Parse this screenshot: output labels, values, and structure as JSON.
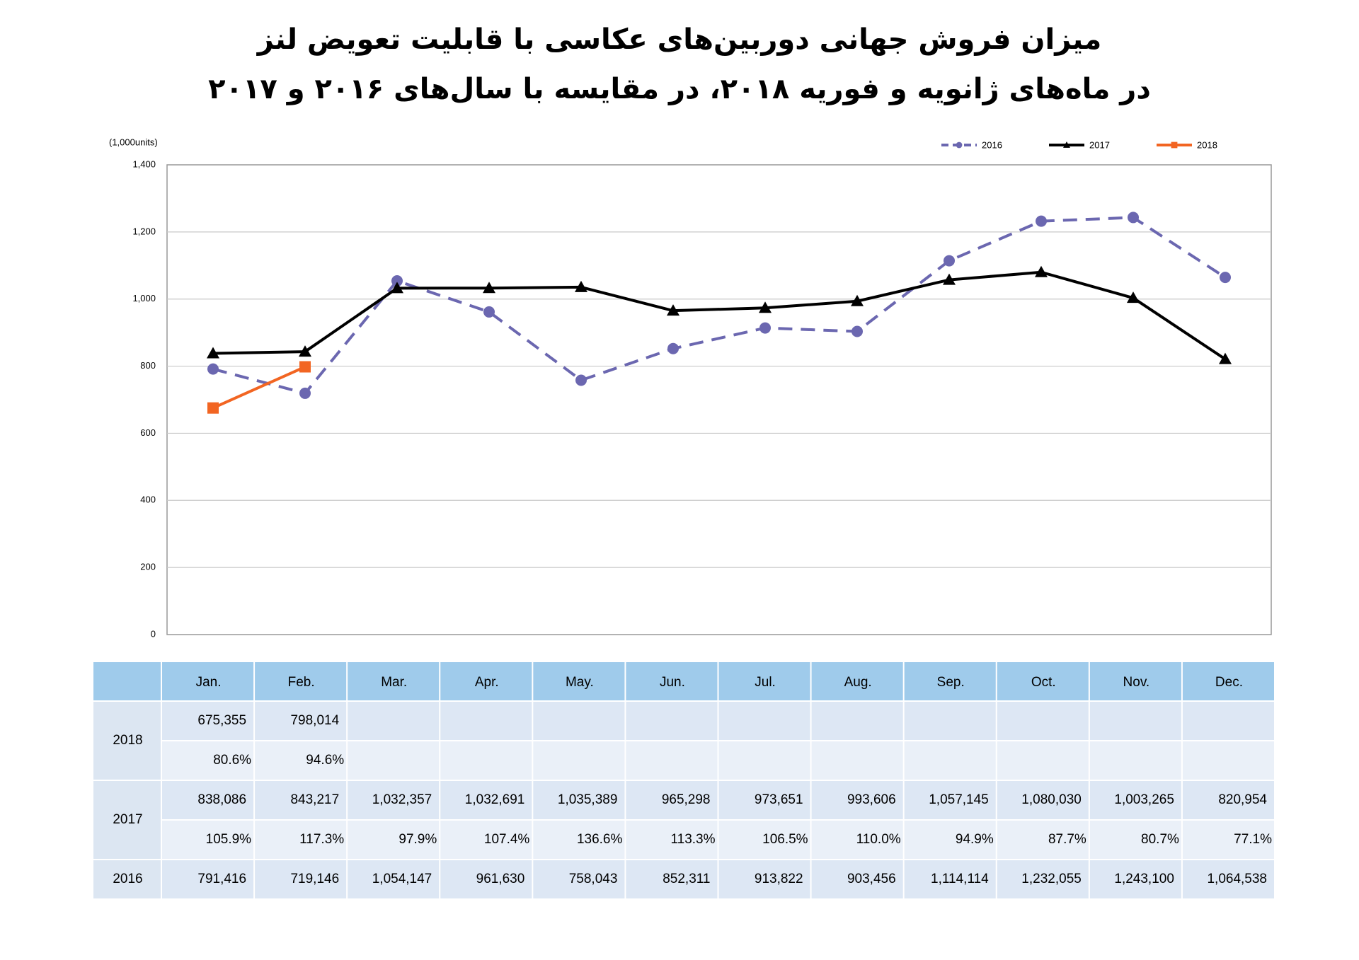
{
  "chart_data": {
    "type": "line",
    "title": "میزان فروش جهانی دوربین‌های عکاسی با قابلیت تعویض لنز",
    "subtitle": "در ماه‌های ژانویه و فوریه ۲۰۱۸، در مقایسه با سال‌های ۲۰۱۶ و ۲۰۱۷",
    "y_label": "(1,000units)",
    "categories": [
      "Jan.",
      "Feb.",
      "Mar.",
      "Apr.",
      "May.",
      "Jun.",
      "Jul.",
      "Aug.",
      "Sep.",
      "Oct.",
      "Nov.",
      "Dec."
    ],
    "series": [
      {
        "name": "2016",
        "color": "#6b67b0",
        "dash": true,
        "marker": "circle",
        "values": [
          791.416,
          719.146,
          1054.147,
          961.63,
          758.043,
          852.311,
          913.822,
          903.456,
          1114.114,
          1232.055,
          1243.1,
          1064.538
        ]
      },
      {
        "name": "2017",
        "color": "#000000",
        "dash": false,
        "marker": "triangle",
        "values": [
          838.086,
          843.217,
          1032.357,
          1032.691,
          1035.389,
          965.298,
          973.651,
          993.606,
          1057.145,
          1080.03,
          1003.265,
          820.954
        ]
      },
      {
        "name": "2018",
        "color": "#f26522",
        "dash": false,
        "marker": "square",
        "values": [
          675.355,
          798.014,
          null,
          null,
          null,
          null,
          null,
          null,
          null,
          null,
          null,
          null
        ]
      }
    ],
    "ylim": [
      0,
      1400
    ],
    "yticks": [
      0,
      200,
      400,
      600,
      800,
      {
        "value": 1000,
        "label": "1,000"
      },
      {
        "value": 1200,
        "label": "1,200"
      },
      {
        "value": 1400,
        "label": "1,400"
      }
    ],
    "grid": true,
    "legend": "top-right"
  },
  "table": {
    "rows": [
      {
        "label": "2018",
        "values": [
          "675,355",
          "798,014"
        ],
        "ratios": [
          "80.6%",
          "94.6%"
        ]
      },
      {
        "label": "2017",
        "values": [
          "838,086",
          "843,217",
          "1,032,357",
          "1,032,691",
          "1,035,389",
          "965,298",
          "973,651",
          "993,606",
          "1,057,145",
          "1,080,030",
          "1,003,265",
          "820,954"
        ],
        "ratios": [
          "105.9%",
          "117.3%",
          "97.9%",
          "107.4%",
          "136.6%",
          "113.3%",
          "106.5%",
          "110.0%",
          "94.9%",
          "87.7%",
          "80.7%",
          "77.1%"
        ]
      },
      {
        "label": "2016",
        "values": [
          "791,416",
          "719,146",
          "1,054,147",
          "961,630",
          "758,043",
          "852,311",
          "913,822",
          "903,456",
          "1,114,114",
          "1,232,055",
          "1,243,100",
          "1,064,538"
        ]
      }
    ]
  }
}
